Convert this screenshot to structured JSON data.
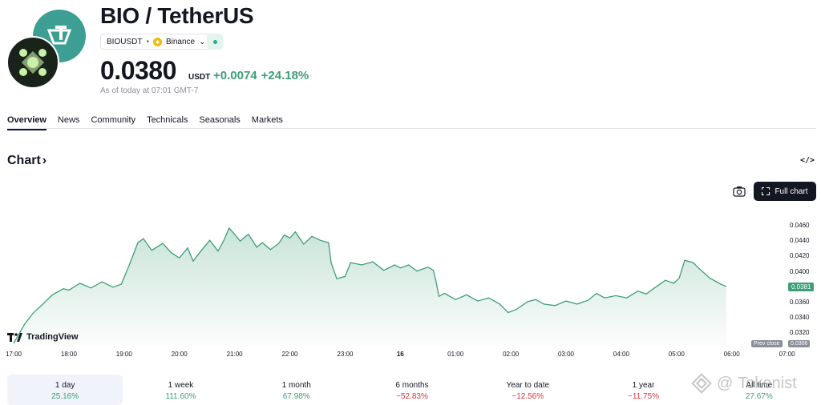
{
  "header": {
    "title": "BIO / TetherUS",
    "symbol": "BIOUSDT",
    "exchange": "Binance",
    "price": "0.0380",
    "currency": "USDT",
    "change_abs": "+0.0074",
    "change_pct": "+24.18%",
    "as_of": "As of today at 07:01 GMT-7"
  },
  "tabs": [
    {
      "label": "Overview"
    },
    {
      "label": "News"
    },
    {
      "label": "Community"
    },
    {
      "label": "Technicals"
    },
    {
      "label": "Seasonals"
    },
    {
      "label": "Markets"
    }
  ],
  "chart_section": {
    "title": "Chart",
    "embed": "</>",
    "full_chart": "Full chart",
    "branding": "TradingView"
  },
  "chart_data": {
    "type": "area",
    "x": [
      "17:00",
      "18:00",
      "19:00",
      "20:00",
      "21:00",
      "22:00",
      "23:00",
      "16",
      "01:00",
      "02:00",
      "03:00",
      "04:00",
      "05:00",
      "06:00",
      "07:00"
    ],
    "y_ticks": [
      "0.0460",
      "0.0440",
      "0.0420",
      "0.0400",
      "0.0380",
      "0.0360",
      "0.0340",
      "0.0320"
    ],
    "ylim": [
      0.0306,
      0.0476
    ],
    "last_value": "0.0381",
    "prev_close_label": "Prev close",
    "prev_close_value": "0.0306",
    "series": [
      {
        "values": [
          [
            0.0,
            0.0307
          ],
          [
            0.2,
            0.0332
          ],
          [
            0.35,
            0.0346
          ],
          [
            0.5,
            0.0356
          ],
          [
            0.7,
            0.037
          ],
          [
            0.9,
            0.0378
          ],
          [
            1.0,
            0.0376
          ],
          [
            1.2,
            0.0385
          ],
          [
            1.4,
            0.0379
          ],
          [
            1.6,
            0.0387
          ],
          [
            1.8,
            0.038
          ],
          [
            1.95,
            0.0384
          ],
          [
            2.1,
            0.041
          ],
          [
            2.25,
            0.0438
          ],
          [
            2.35,
            0.0443
          ],
          [
            2.5,
            0.0428
          ],
          [
            2.7,
            0.0437
          ],
          [
            2.85,
            0.0425
          ],
          [
            3.0,
            0.0418
          ],
          [
            3.15,
            0.0431
          ],
          [
            3.25,
            0.0414
          ],
          [
            3.4,
            0.0428
          ],
          [
            3.55,
            0.0441
          ],
          [
            3.7,
            0.0427
          ],
          [
            3.8,
            0.044
          ],
          [
            3.9,
            0.0457
          ],
          [
            4.0,
            0.0449
          ],
          [
            4.1,
            0.044
          ],
          [
            4.25,
            0.0449
          ],
          [
            4.4,
            0.0432
          ],
          [
            4.5,
            0.0438
          ],
          [
            4.65,
            0.0429
          ],
          [
            4.8,
            0.0437
          ],
          [
            4.9,
            0.0448
          ],
          [
            5.0,
            0.0444
          ],
          [
            5.1,
            0.0452
          ],
          [
            5.25,
            0.0436
          ],
          [
            5.4,
            0.0446
          ],
          [
            5.55,
            0.0441
          ],
          [
            5.7,
            0.0438
          ],
          [
            5.75,
            0.0411
          ],
          [
            5.85,
            0.0391
          ],
          [
            6.0,
            0.0394
          ],
          [
            6.1,
            0.0412
          ],
          [
            6.3,
            0.0409
          ],
          [
            6.5,
            0.0413
          ],
          [
            6.7,
            0.0402
          ],
          [
            6.9,
            0.0409
          ],
          [
            7.0,
            0.0405
          ],
          [
            7.15,
            0.0409
          ],
          [
            7.3,
            0.0401
          ],
          [
            7.5,
            0.0406
          ],
          [
            7.6,
            0.0402
          ],
          [
            7.65,
            0.0386
          ],
          [
            7.7,
            0.0368
          ],
          [
            7.8,
            0.0372
          ],
          [
            8.0,
            0.0364
          ],
          [
            8.2,
            0.037
          ],
          [
            8.4,
            0.0362
          ],
          [
            8.6,
            0.0366
          ],
          [
            8.8,
            0.0358
          ],
          [
            8.95,
            0.0347
          ],
          [
            9.1,
            0.0351
          ],
          [
            9.3,
            0.0361
          ],
          [
            9.45,
            0.0364
          ],
          [
            9.6,
            0.0358
          ],
          [
            9.8,
            0.0356
          ],
          [
            10.0,
            0.0362
          ],
          [
            10.2,
            0.0358
          ],
          [
            10.4,
            0.0363
          ],
          [
            10.55,
            0.0372
          ],
          [
            10.7,
            0.0366
          ],
          [
            10.9,
            0.0369
          ],
          [
            11.1,
            0.0366
          ],
          [
            11.3,
            0.0375
          ],
          [
            11.45,
            0.0371
          ],
          [
            11.6,
            0.0379
          ],
          [
            11.8,
            0.0389
          ],
          [
            11.95,
            0.0385
          ],
          [
            12.05,
            0.0392
          ],
          [
            12.15,
            0.0415
          ],
          [
            12.3,
            0.0412
          ],
          [
            12.4,
            0.0405
          ],
          [
            12.6,
            0.0392
          ],
          [
            12.8,
            0.0384
          ],
          [
            12.9,
            0.0381
          ]
        ]
      }
    ]
  },
  "periods": [
    {
      "label": "1 day",
      "value": "25.16%",
      "dir": "pos"
    },
    {
      "label": "1 week",
      "value": "111.60%",
      "dir": "pos"
    },
    {
      "label": "1 month",
      "value": "67.98%",
      "dir": "pos"
    },
    {
      "label": "6 months",
      "value": "−52.83%",
      "dir": "neg"
    },
    {
      "label": "Year to date",
      "value": "−12.56%",
      "dir": "neg"
    },
    {
      "label": "1 year",
      "value": "−11.75%",
      "dir": "neg"
    },
    {
      "label": "All time",
      "value": "27.67%",
      "dir": "pos"
    }
  ],
  "watermark": "Tokenist",
  "colors": {
    "accent": "#3e9e76",
    "line": "#3e9e76",
    "negative": "#e2313a"
  },
  "icons": {
    "logo": "bio-logo",
    "tether": "tether-logo",
    "camera": "camera-icon",
    "fullscreen": "fullscreen-icon"
  }
}
